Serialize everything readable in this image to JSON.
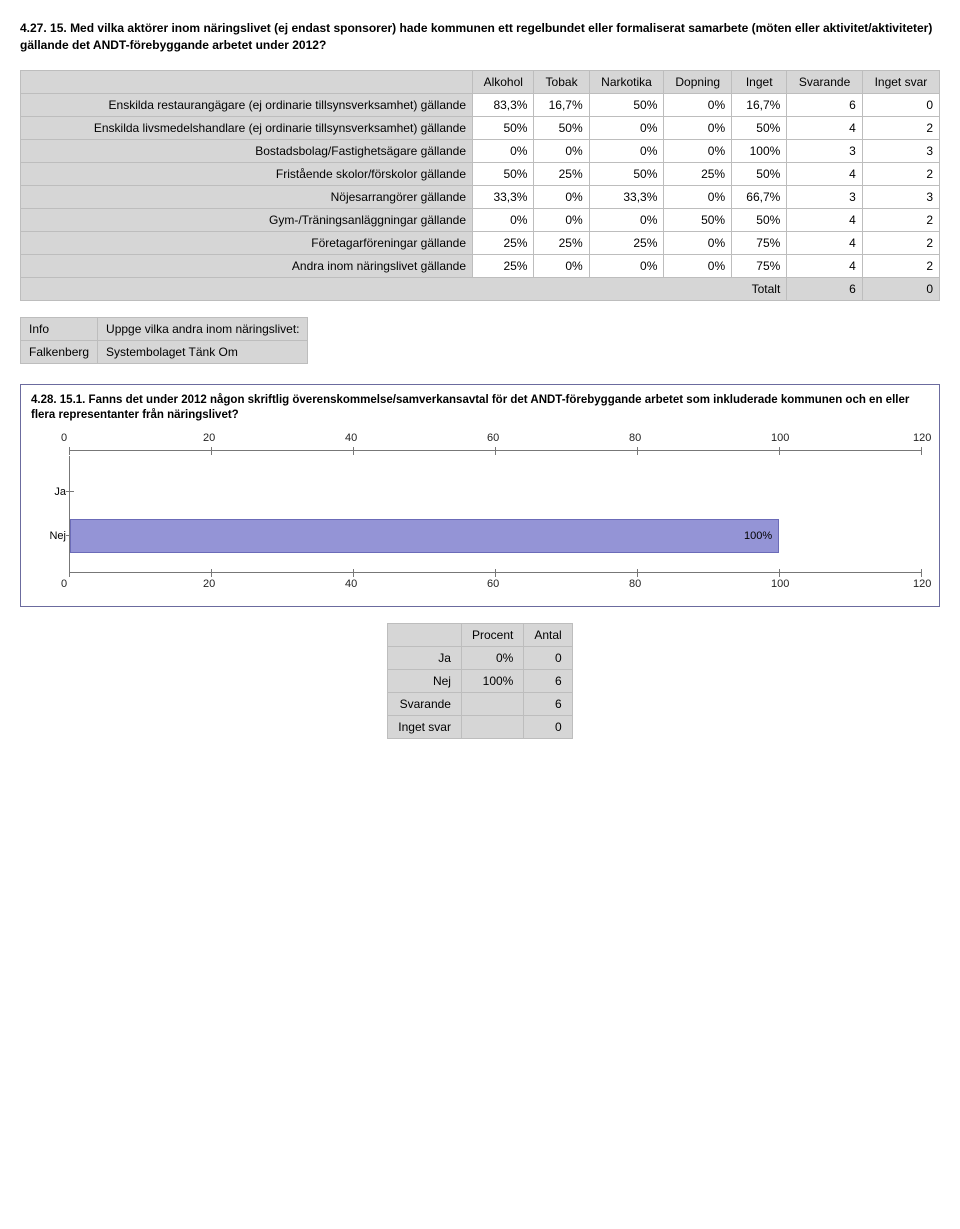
{
  "question1": {
    "number": "4.27. 15.",
    "text": "Med vilka aktörer inom näringslivet (ej endast sponsorer) hade kommunen ett regelbundet eller formaliserat samarbete (möten eller aktivitet/aktiviteter) gällande det ANDT-förebyggande arbetet under 2012?"
  },
  "table1": {
    "columns": [
      "Alkohol",
      "Tobak",
      "Narkotika",
      "Dopning",
      "Inget",
      "Svarande",
      "Inget svar"
    ],
    "rows": [
      {
        "label": "Enskilda restaurangägare (ej ordinarie tillsynsverksamhet) gällande",
        "cells": [
          "83,3%",
          "16,7%",
          "50%",
          "0%",
          "16,7%",
          "6",
          "0"
        ]
      },
      {
        "label": "Enskilda livsmedelshandlare (ej ordinarie tillsynsverksamhet) gällande",
        "cells": [
          "50%",
          "50%",
          "0%",
          "0%",
          "50%",
          "4",
          "2"
        ]
      },
      {
        "label": "Bostadsbolag/Fastighetsägare gällande",
        "cells": [
          "0%",
          "0%",
          "0%",
          "0%",
          "100%",
          "3",
          "3"
        ]
      },
      {
        "label": "Fristående skolor/förskolor gällande",
        "cells": [
          "50%",
          "25%",
          "50%",
          "25%",
          "50%",
          "4",
          "2"
        ]
      },
      {
        "label": "Nöjesarrangörer gällande",
        "cells": [
          "33,3%",
          "0%",
          "33,3%",
          "0%",
          "66,7%",
          "3",
          "3"
        ]
      },
      {
        "label": "Gym-/Träningsanläggningar gällande",
        "cells": [
          "0%",
          "0%",
          "0%",
          "50%",
          "50%",
          "4",
          "2"
        ]
      },
      {
        "label": "Företagarföreningar gällande",
        "cells": [
          "25%",
          "25%",
          "25%",
          "0%",
          "75%",
          "4",
          "2"
        ]
      },
      {
        "label": "Andra inom näringslivet gällande",
        "cells": [
          "25%",
          "0%",
          "0%",
          "0%",
          "75%",
          "4",
          "2"
        ]
      }
    ],
    "total_label": "Totalt",
    "total_cells": [
      "6",
      "0"
    ]
  },
  "info_table": {
    "header_left": "Info",
    "header_right": "Uppge vilka andra inom näringslivet:",
    "row_left": "Falkenberg",
    "row_right": "Systembolaget Tänk Om"
  },
  "question2": {
    "title": "4.28. 15.1. Fanns det under 2012 någon skriftlig överenskommelse/samverkansavtal för det ANDT-förebyggande arbetet som inkluderade kommunen och en eller flera representanter från näringslivet?"
  },
  "chart": {
    "type": "horizontal-bar",
    "xmax": 120,
    "xticks": [
      0,
      20,
      40,
      60,
      80,
      100,
      120
    ],
    "bar_color": "#9494d6",
    "bar_border": "#6b6bb8",
    "axis_color": "#777777",
    "categories": [
      {
        "label": "Ja",
        "value": 0,
        "show_label": false
      },
      {
        "label": "Nej",
        "value": 100,
        "show_label": true,
        "value_label": "100%"
      }
    ]
  },
  "summary": {
    "columns": [
      "Procent",
      "Antal"
    ],
    "rows": [
      {
        "label": "Ja",
        "procent": "0%",
        "antal": "0"
      },
      {
        "label": "Nej",
        "procent": "100%",
        "antal": "6"
      },
      {
        "label": "Svarande",
        "procent": "",
        "antal": "6"
      },
      {
        "label": "Inget svar",
        "procent": "",
        "antal": "0"
      }
    ]
  }
}
